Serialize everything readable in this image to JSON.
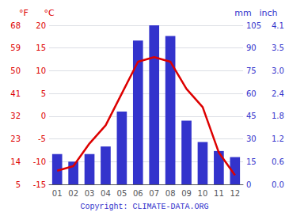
{
  "chart_data": {
    "type": "bar",
    "categories": [
      "01",
      "02",
      "03",
      "04",
      "05",
      "06",
      "07",
      "08",
      "09",
      "10",
      "11",
      "12"
    ],
    "series": [
      {
        "type": "bar",
        "color": "#3333cc",
        "axis": "y2",
        "values": [
          20,
          15,
          20,
          25,
          48,
          95,
          105,
          98,
          42,
          28,
          22,
          18
        ]
      },
      {
        "type": "line",
        "color": "#dd0000",
        "values": [
          -12,
          -11,
          -6,
          -2,
          5,
          12,
          13,
          12,
          6,
          2,
          -8,
          -13
        ]
      }
    ],
    "ylabel": "°C",
    "ylim": [
      -15,
      20
    ],
    "yticks": [
      -15,
      -10,
      -5,
      0,
      5,
      10,
      15,
      20
    ],
    "y2label": "mm",
    "y2lim": [
      0,
      105
    ],
    "y2ticks": [
      0,
      15,
      30,
      45,
      60,
      75,
      90,
      105
    ],
    "y3label": "°F",
    "y3lim": [
      5,
      68
    ],
    "y3ticks": [
      5,
      14,
      23,
      32,
      41,
      50,
      59,
      68
    ],
    "y4label": "inch",
    "y4lim": [
      0,
      105
    ],
    "y4ticks": [
      {
        "value": 0,
        "label": "0.0"
      },
      {
        "value": 15,
        "label": "0.6"
      },
      {
        "value": 30,
        "label": "1.2"
      },
      {
        "value": 45,
        "label": "1.8"
      },
      {
        "value": 60,
        "label": "2.4"
      },
      {
        "value": 75,
        "label": "3.0"
      },
      {
        "value": 90,
        "label": "3.5"
      },
      {
        "value": 105,
        "label": "4.1"
      }
    ],
    "annotations": [
      "Copyright: CLIMATE-DATA.ORG"
    ],
    "grid": true
  }
}
